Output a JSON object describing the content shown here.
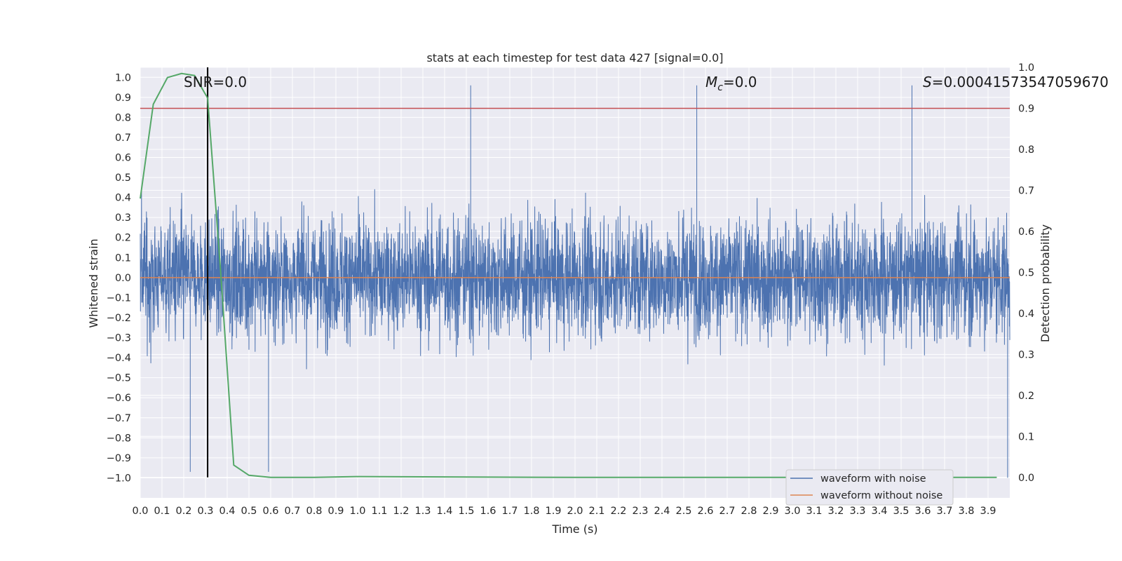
{
  "chart_data": {
    "type": "line",
    "title": "stats at each timestep for test data 427 [signal=0.0]",
    "xlabel": "Time (s)",
    "ylabel": "Whitened strain",
    "y2label": "Detection probability",
    "xlim": [
      0.0,
      4.0
    ],
    "ylim": [
      -1.1,
      1.05
    ],
    "y2lim": [
      -0.05,
      1.0
    ],
    "x_ticks": [
      "0.0",
      "0.1",
      "0.2",
      "0.3",
      "0.4",
      "0.5",
      "0.6",
      "0.7",
      "0.8",
      "0.9",
      "1.0",
      "1.1",
      "1.2",
      "1.3",
      "1.4",
      "1.5",
      "1.6",
      "1.7",
      "1.8",
      "1.9",
      "2.0",
      "2.1",
      "2.2",
      "2.3",
      "2.4",
      "2.5",
      "2.6",
      "2.7",
      "2.8",
      "2.9",
      "3.0",
      "3.1",
      "3.2",
      "3.3",
      "3.4",
      "3.5",
      "3.6",
      "3.7",
      "3.8",
      "3.9"
    ],
    "y_ticks": [
      "1.0",
      "0.9",
      "0.8",
      "0.7",
      "0.6",
      "0.5",
      "0.4",
      "0.3",
      "0.2",
      "0.1",
      "0.0",
      "−0.1",
      "−0.2",
      "−0.3",
      "−0.4",
      "−0.5",
      "−0.6",
      "−0.7",
      "−0.8",
      "−0.9",
      "−1.0"
    ],
    "y2_ticks": [
      "1.0",
      "0.9",
      "0.8",
      "0.7",
      "0.6",
      "0.5",
      "0.4",
      "0.3",
      "0.2",
      "0.1",
      "0.0"
    ],
    "annotations": {
      "snr": "SNR=0.0",
      "mc_symbol": "M",
      "mc_sub": "c",
      "mc_value": "=0.0",
      "s_symbol": "S",
      "s_value": "=0.00041573547059670"
    },
    "series": [
      {
        "name": "waveform with noise",
        "axis": "left",
        "color": "#4c72b0",
        "style": "dense noise, amplitude roughly within -0.98 to 0.96",
        "extremes": [
          {
            "x": 0.23,
            "y": -0.97
          },
          {
            "x": 0.59,
            "y": -0.97
          },
          {
            "x": 1.52,
            "y": 0.96
          },
          {
            "x": 2.56,
            "y": 0.96
          },
          {
            "x": 3.55,
            "y": 0.96
          },
          {
            "x": 3.99,
            "y": -1.0
          }
        ]
      },
      {
        "name": "waveform without noise",
        "axis": "left",
        "color": "#dd8452",
        "x": [
          0.0,
          4.0
        ],
        "values": [
          0.0,
          0.0
        ]
      },
      {
        "name": "detection probability",
        "axis": "right",
        "color": "#55a868",
        "x": [
          0.0,
          0.06,
          0.125,
          0.19,
          0.25,
          0.31,
          0.37,
          0.43,
          0.5,
          0.6,
          0.8,
          1.0,
          2.0,
          3.0,
          3.94
        ],
        "values": [
          0.68,
          0.91,
          0.975,
          0.985,
          0.98,
          0.925,
          0.5,
          0.03,
          0.005,
          0.0,
          0.0,
          0.002,
          0.0,
          0.0,
          0.0
        ]
      }
    ],
    "threshold_line": {
      "axis": "right",
      "value": 0.9,
      "color": "#c44e52"
    },
    "vertical_marker": {
      "x": 0.31,
      "color": "#000000"
    },
    "legend": {
      "placement": "lower-right",
      "entries": [
        {
          "label": "waveform with noise",
          "color": "#4c72b0"
        },
        {
          "label": "waveform without noise",
          "color": "#dd8452"
        }
      ]
    },
    "style": {
      "background": "#eaeaf2",
      "grid_color": "#ffffff",
      "grid": true
    }
  }
}
